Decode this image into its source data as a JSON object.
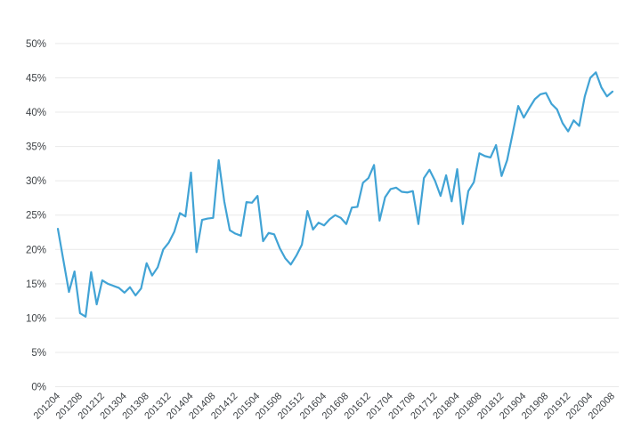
{
  "chart_data": {
    "type": "line",
    "title": "",
    "xlabel": "",
    "ylabel": "",
    "legend": "none",
    "grid": "horizontal",
    "ylim": [
      0,
      50
    ],
    "y_unit": "%",
    "y_tick_labels": [
      "0%",
      "5%",
      "10%",
      "15%",
      "20%",
      "25%",
      "30%",
      "35%",
      "40%",
      "45%",
      "50%"
    ],
    "x_tick_labels": [
      "201204",
      "201208",
      "201212",
      "201304",
      "201308",
      "201312",
      "201404",
      "201408",
      "201412",
      "201504",
      "201508",
      "201512",
      "201604",
      "201608",
      "201612",
      "201704",
      "201708",
      "201712",
      "201804",
      "201808",
      "201812",
      "201904",
      "201908",
      "201912",
      "202004",
      "202008"
    ],
    "months": [
      "201204",
      "201205",
      "201206",
      "201207",
      "201208",
      "201209",
      "201210",
      "201211",
      "201212",
      "201301",
      "201302",
      "201303",
      "201304",
      "201305",
      "201306",
      "201307",
      "201308",
      "201309",
      "201310",
      "201311",
      "201312",
      "201401",
      "201402",
      "201403",
      "201404",
      "201405",
      "201406",
      "201407",
      "201408",
      "201409",
      "201410",
      "201411",
      "201412",
      "201501",
      "201502",
      "201503",
      "201504",
      "201505",
      "201506",
      "201507",
      "201508",
      "201509",
      "201510",
      "201511",
      "201512",
      "201601",
      "201602",
      "201603",
      "201604",
      "201605",
      "201606",
      "201607",
      "201608",
      "201609",
      "201610",
      "201611",
      "201612",
      "201701",
      "201702",
      "201703",
      "201704",
      "201705",
      "201706",
      "201707",
      "201708",
      "201709",
      "201710",
      "201711",
      "201712",
      "201801",
      "201802",
      "201803",
      "201804",
      "201805",
      "201806",
      "201807",
      "201808",
      "201809",
      "201810",
      "201811",
      "201812",
      "201901",
      "201902",
      "201903",
      "201904",
      "201905",
      "201906",
      "201907",
      "201908",
      "201909",
      "201910",
      "201911",
      "201912",
      "202001",
      "202002",
      "202003",
      "202004",
      "202005",
      "202006",
      "202007",
      "202008"
    ],
    "values": [
      23.0,
      18.4,
      13.8,
      16.8,
      10.7,
      10.2,
      16.7,
      12.0,
      15.5,
      15.0,
      14.7,
      14.4,
      13.7,
      14.5,
      13.3,
      14.3,
      18.0,
      16.2,
      17.4,
      20.0,
      21.0,
      22.6,
      25.3,
      24.8,
      31.2,
      19.6,
      24.3,
      24.5,
      24.6,
      33.0,
      27.0,
      22.8,
      22.3,
      22.0,
      26.9,
      26.8,
      27.8,
      21.2,
      22.4,
      22.2,
      20.2,
      18.7,
      17.8,
      19.1,
      20.7,
      25.6,
      22.9,
      23.9,
      23.5,
      24.4,
      25.0,
      24.6,
      23.7,
      26.1,
      26.2,
      29.7,
      30.4,
      32.3,
      24.2,
      27.6,
      28.8,
      29.0,
      28.4,
      28.3,
      28.5,
      23.7,
      30.4,
      31.6,
      30.0,
      27.8,
      30.8,
      27.0,
      31.7,
      23.7,
      28.5,
      29.8,
      34.0,
      33.6,
      33.4,
      35.2,
      30.7,
      33.0,
      36.9,
      40.9,
      39.2,
      40.6,
      41.9,
      42.6,
      42.8,
      41.2,
      40.4,
      38.4,
      37.2,
      38.8,
      38.0,
      42.3,
      45.0,
      45.8,
      43.6,
      42.3,
      43.0
    ],
    "colors": {
      "line": "#41a3d5",
      "gridline": "#e9e9e9",
      "label": "#3f4347",
      "background": "#ffffff"
    }
  }
}
